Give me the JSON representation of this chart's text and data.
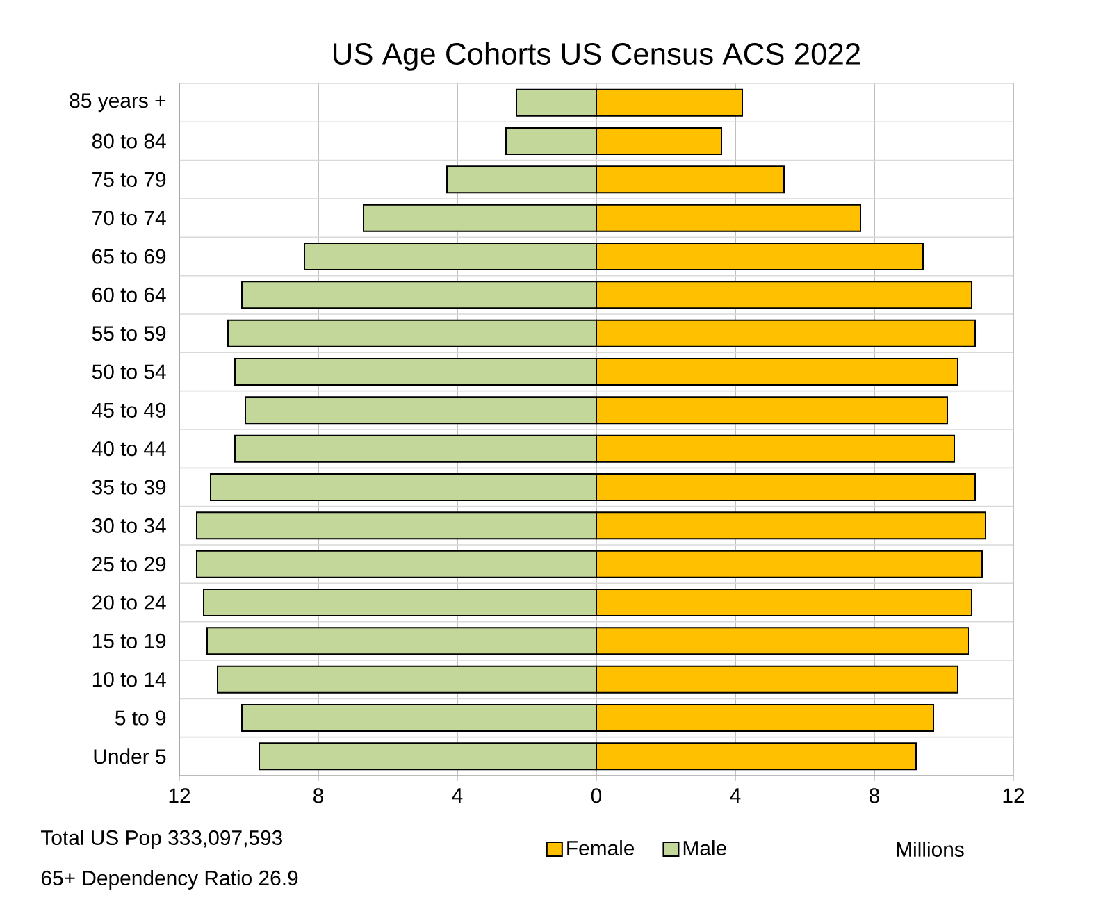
{
  "chart_data": {
    "type": "bar",
    "orientation": "horizontal",
    "title": "US Age Cohorts US Census ACS 2022",
    "xlabel": "Millions",
    "categories": [
      "85 years +",
      "80 to 84",
      "75 to 79",
      "70 to 74",
      "65 to 69",
      "60 to 64",
      "55 to 59",
      "50 to 54",
      "45 to 49",
      "40 to 44",
      "35 to 39",
      "30 to 34",
      "25 to 29",
      "20 to 24",
      "15 to 19",
      "10 to 14",
      "5 to 9",
      "Under 5"
    ],
    "series": [
      {
        "name": "Male",
        "color": "#c4d79b",
        "values": [
          -2.3,
          -2.6,
          -4.3,
          -6.7,
          -8.4,
          -10.2,
          -10.6,
          -10.4,
          -10.1,
          -10.4,
          -11.1,
          -11.5,
          -11.5,
          -11.3,
          -11.2,
          -10.9,
          -10.2,
          -9.7
        ]
      },
      {
        "name": "Female",
        "color": "#ffc000",
        "values": [
          4.2,
          3.6,
          5.4,
          7.6,
          9.4,
          10.8,
          10.9,
          10.4,
          10.1,
          10.3,
          10.9,
          11.2,
          11.1,
          10.8,
          10.7,
          10.4,
          9.7,
          9.2
        ]
      }
    ],
    "xlim": [
      -12,
      12
    ],
    "xticks": [
      {
        "value": -12,
        "label": "12"
      },
      {
        "value": -8,
        "label": "8"
      },
      {
        "value": -4,
        "label": "4"
      },
      0,
      4,
      8,
      12
    ],
    "grid": true,
    "legend": "bottom",
    "stacked": true,
    "annotations": [
      "Total US Pop 333,097,593",
      "65+ Dependency Ratio 26.9"
    ]
  }
}
